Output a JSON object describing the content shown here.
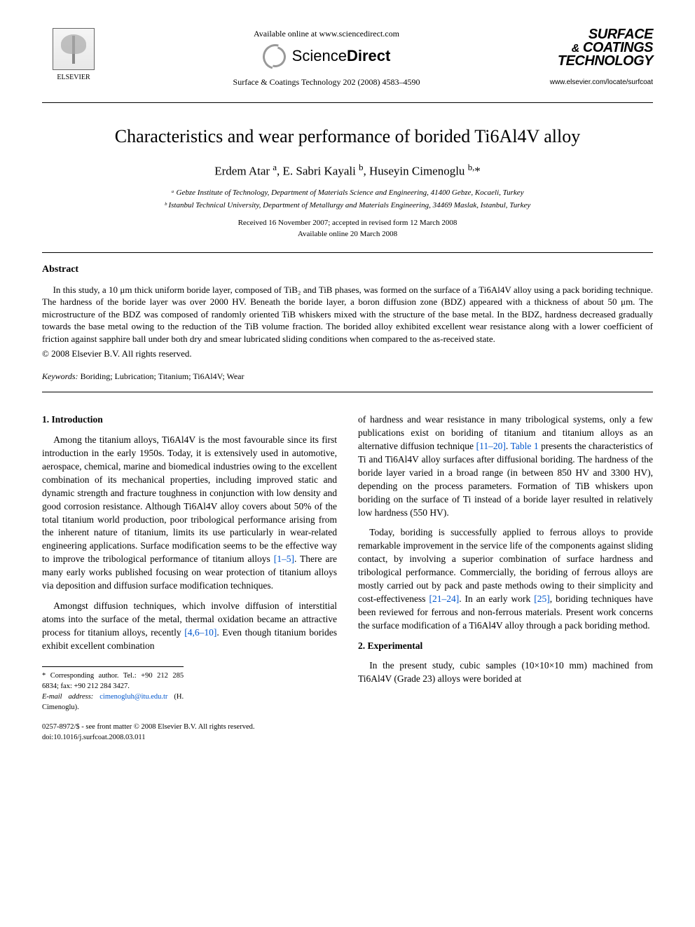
{
  "header": {
    "available_online": "Available online at www.sciencedirect.com",
    "sciencedirect_brand": {
      "part1": "Science",
      "part2": "Direct"
    },
    "journal_ref": "Surface & Coatings Technology 202 (2008) 4583–4590",
    "elsevier_label": "ELSEVIER",
    "journal_logo": {
      "line1": "SURFACE",
      "amp": "&",
      "line2": "COATINGS",
      "line3": "TECHNOLOGY"
    },
    "journal_url": "www.elsevier.com/locate/surfcoat"
  },
  "article": {
    "title": "Characteristics and wear performance of borided Ti6Al4V alloy",
    "authors_html": "Erdem Atar <sup>a</sup>, E. Sabri Kayali <sup>b</sup>, Huseyin Cimenoglu <sup>b,</sup>*",
    "affiliations": [
      "ᵃ Gebze Institute of Technology, Department of Materials Science and Engineering, 41400 Gebze, Kocaeli, Turkey",
      "ᵇ Istanbul Technical University, Department of Metallurgy and Materials Engineering, 34469 Maslak, Istanbul, Turkey"
    ],
    "dates": {
      "received": "Received 16 November 2007; accepted in revised form 12 March 2008",
      "online": "Available online 20 March 2008"
    }
  },
  "abstract": {
    "heading": "Abstract",
    "text": "In this study, a 10 μm thick uniform boride layer, composed of TiB₂ and TiB phases, was formed on the surface of a Ti6Al4V alloy using a pack boriding technique. The hardness of the boride layer was over 2000 HV. Beneath the boride layer, a boron diffusion zone (BDZ) appeared with a thickness of about 50 μm. The microstructure of the BDZ was composed of randomly oriented TiB whiskers mixed with the structure of the base metal. In the BDZ, hardness decreased gradually towards the base metal owing to the reduction of the TiB volume fraction. The borided alloy exhibited excellent wear resistance along with a lower coefficient of friction against sapphire ball under both dry and smear lubricated sliding conditions when compared to the as-received state.",
    "copyright": "© 2008 Elsevier B.V. All rights reserved."
  },
  "keywords": {
    "label": "Keywords:",
    "text": "Boriding; Lubrication; Titanium; Ti6Al4V; Wear"
  },
  "sections": {
    "intro_h": "1. Introduction",
    "intro_p1": "Among the titanium alloys, Ti6Al4V is the most favourable since its first introduction in the early 1950s. Today, it is extensively used in automotive, aerospace, chemical, marine and biomedical industries owing to the excellent combination of its mechanical properties, including improved static and dynamic strength and fracture toughness in conjunction with low density and good corrosion resistance. Although Ti6Al4V alloy covers about 50% of the total titanium world production, poor tribological performance arising from the inherent nature of titanium, limits its use particularly in wear-related engineering applications. Surface modification seems to be the effective way to improve the tribological performance of titanium alloys ",
    "intro_ref1": "[1–5]",
    "intro_p1b": ". There are many early works published focusing on wear protection of titanium alloys via deposition and diffusion surface modification techniques.",
    "intro_p2a": "Amongst diffusion techniques, which involve diffusion of interstitial atoms into the surface of the metal, thermal oxidation became an attractive process for titanium alloys, recently ",
    "intro_ref2": "[4,6–10]",
    "intro_p2b": ". Even though titanium borides exhibit excellent combination",
    "col2_p1a": "of hardness and wear resistance in many tribological systems, only a few publications exist on boriding of titanium and titanium alloys as an alternative diffusion technique ",
    "col2_ref1": "[11–20]",
    "col2_p1b": ". ",
    "col2_ref_t1": "Table 1",
    "col2_p1c": " presents the characteristics of Ti and Ti6Al4V alloy surfaces after diffusional boriding. The hardness of the boride layer varied in a broad range (in between 850 HV and 3300 HV), depending on the process parameters. Formation of TiB whiskers upon boriding on the surface of Ti instead of a boride layer resulted in relatively low hardness (550 HV).",
    "col2_p2a": "Today, boriding is successfully applied to ferrous alloys to provide remarkable improvement in the service life of the components against sliding contact, by involving a superior combination of surface hardness and tribological performance. Commercially, the boriding of ferrous alloys are mostly carried out by pack and paste methods owing to their simplicity and cost-effectiveness ",
    "col2_ref2": "[21–24]",
    "col2_p2b": ". In an early work ",
    "col2_ref3": "[25]",
    "col2_p2c": ", boriding techniques have been reviewed for ferrous and non-ferrous materials. Present work concerns the surface modification of a Ti6Al4V alloy through a pack boriding method.",
    "exp_h": "2. Experimental",
    "exp_p1": "In the present study, cubic samples (10×10×10 mm) machined from Ti6Al4V (Grade 23) alloys were borided at"
  },
  "footnotes": {
    "corr": "* Corresponding author. Tel.: +90 212 285 6834; fax: +90 212 284 3427.",
    "email_label": "E-mail address:",
    "email": "cimenogluh@itu.edu.tr",
    "email_author": "(H. Cimenoglu)."
  },
  "footer": {
    "left1": "0257-8972/$ - see front matter © 2008 Elsevier B.V. All rights reserved.",
    "left2": "doi:10.1016/j.surfcoat.2008.03.011"
  },
  "colors": {
    "link": "#0055cc",
    "text": "#000000",
    "bg": "#ffffff"
  }
}
